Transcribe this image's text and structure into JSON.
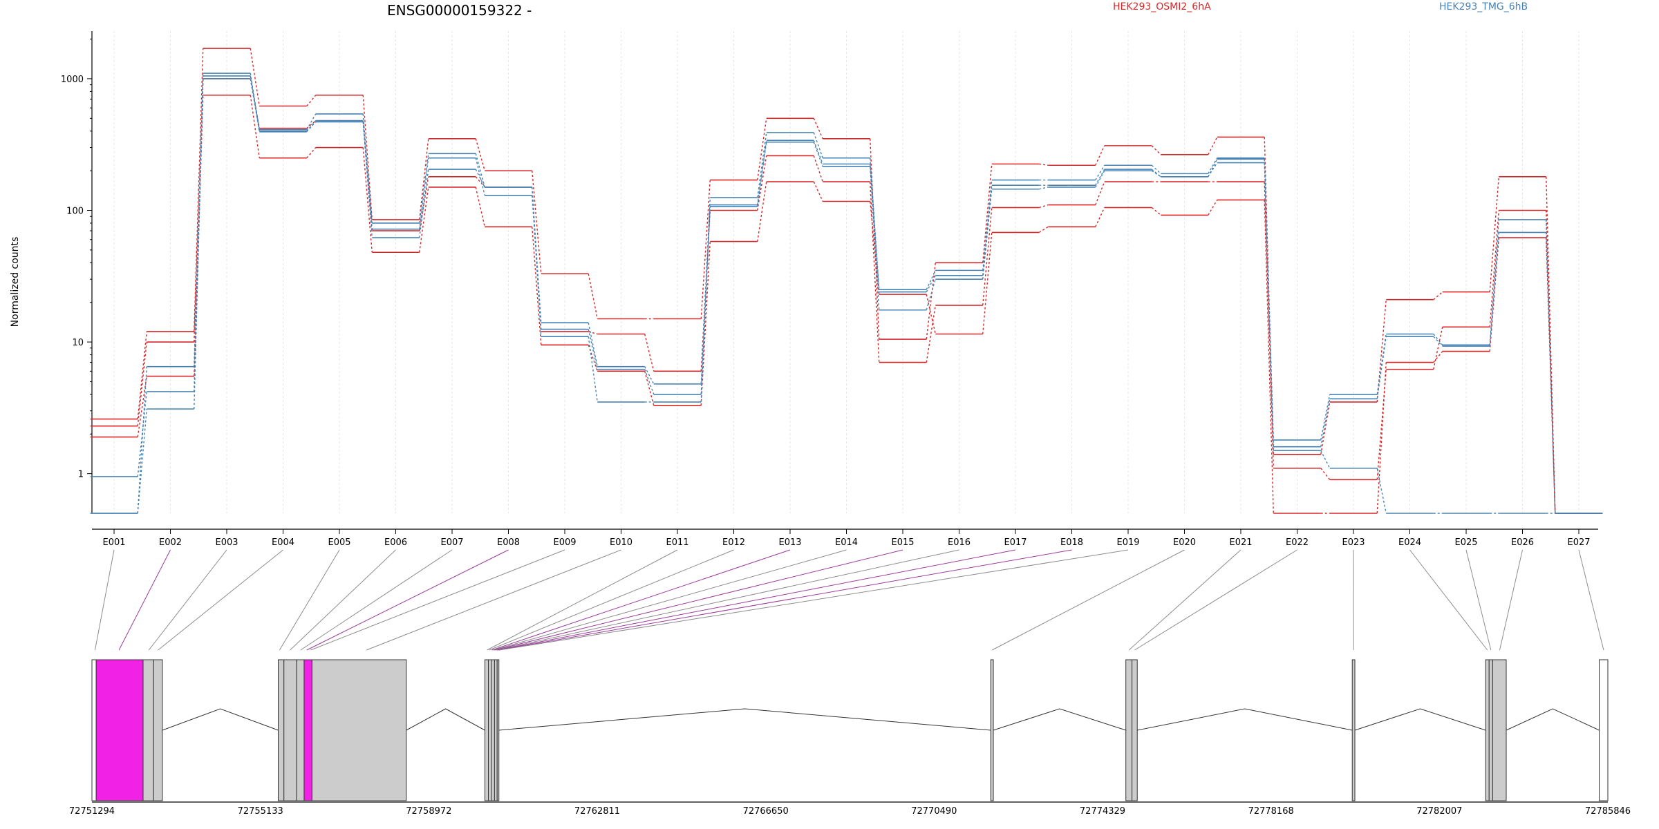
{
  "chart_data": {
    "type": "line",
    "title": "ENSG00000159322 -",
    "ylabel": "Normalized counts",
    "xlabel": "",
    "y_scale": "log",
    "ylim": [
      0.5,
      2300
    ],
    "y_ticks": [
      1,
      10,
      100,
      1000
    ],
    "y_tick_labels": [
      "1",
      "10",
      "100",
      "1000"
    ],
    "grid": "vertical-dotted",
    "legend_position": "top",
    "colors": {
      "HEK293_OSMI2_6hA": "#d62728",
      "HEK293_TMG_6hB": "#4682b4"
    },
    "categories": [
      "E001",
      "E002",
      "E003",
      "E004",
      "E005",
      "E006",
      "E007",
      "E008",
      "E009",
      "E010",
      "E011",
      "E012",
      "E013",
      "E014",
      "E015",
      "E016",
      "E017",
      "E018",
      "E019",
      "E020",
      "E021",
      "E022",
      "E023",
      "E024",
      "E025",
      "E026",
      "E027"
    ],
    "series": [
      {
        "name": "HEK293_OSMI2_6hA",
        "group": "HEK293_OSMI2_6hA",
        "values": [
          2.6,
          12,
          1700,
          620,
          750,
          85,
          350,
          200,
          33,
          15,
          15,
          170,
          500,
          350,
          10.5,
          40,
          225,
          220,
          310,
          265,
          360,
          1.4,
          3.5,
          21,
          24,
          180,
          0.5
        ]
      },
      {
        "name": "HEK293_OSMI2_6hA",
        "group": "HEK293_OSMI2_6hA",
        "values": [
          2.3,
          10,
          1000,
          420,
          480,
          70,
          180,
          150,
          12,
          11.5,
          6,
          100,
          260,
          165,
          7,
          19,
          105,
          110,
          165,
          165,
          165,
          1.1,
          0.9,
          6.2,
          13,
          100,
          0.5
        ]
      },
      {
        "name": "HEK293_OSMI2_6hA",
        "group": "HEK293_OSMI2_6hA",
        "values": [
          1.9,
          5.5,
          750,
          250,
          300,
          48,
          150,
          75,
          9.5,
          6,
          3.3,
          58,
          165,
          117,
          23,
          11.5,
          68,
          75,
          105,
          92,
          120,
          0.5,
          0.5,
          7,
          8.5,
          62,
          0.5
        ]
      },
      {
        "name": "HEK293_TMG_6hB",
        "group": "HEK293_TMG_6hB",
        "values": [
          0.5,
          6.5,
          1100,
          410,
          540,
          80,
          270,
          150,
          14,
          6.5,
          4.8,
          125,
          390,
          250,
          25,
          35,
          170,
          170,
          220,
          190,
          250,
          1.8,
          4,
          11.5,
          9.5,
          85,
          0.5
        ]
      },
      {
        "name": "HEK293_TMG_6hB",
        "group": "HEK293_TMG_6hB",
        "values": [
          0.95,
          4.2,
          1050,
          400,
          480,
          72,
          250,
          130,
          12.5,
          6.2,
          4,
          110,
          340,
          225,
          24,
          32,
          155,
          155,
          205,
          180,
          230,
          1.6,
          3.7,
          11,
          9.3,
          68,
          0.5
        ]
      },
      {
        "name": "HEK293_TMG_6hB",
        "group": "HEK293_TMG_6hB",
        "values": [
          0.5,
          3.1,
          1000,
          395,
          470,
          62,
          205,
          150,
          11,
          3.5,
          3.5,
          107,
          330,
          215,
          17.5,
          30,
          145,
          150,
          200,
          180,
          245,
          1.5,
          1.1,
          0.5,
          0.5,
          0.5,
          0.5
        ]
      }
    ],
    "gene_model": {
      "coordinate_labels": [
        "72751294",
        "72755133",
        "72758972",
        "72762811",
        "72766650",
        "72770490",
        "72774329",
        "72778168",
        "72782007",
        "72785846"
      ],
      "coord_start": 72751294,
      "coord_end": 72785846,
      "exons": [
        {
          "id": "E001",
          "start": 72751294,
          "end": 72751391,
          "fill": "#ffffff",
          "highlight": false
        },
        {
          "id": "E002",
          "start": 72751391,
          "end": 72752460,
          "fill": "#f122e6",
          "highlight": true
        },
        {
          "id": "E003",
          "start": 72752460,
          "end": 72752700,
          "fill": "#cccccc",
          "highlight": false
        },
        {
          "id": "E004",
          "start": 72752700,
          "end": 72752900,
          "fill": "#cccccc",
          "highlight": false
        },
        {
          "id": "E005",
          "start": 72755540,
          "end": 72755670,
          "fill": "#cccccc",
          "highlight": false
        },
        {
          "id": "E006",
          "start": 72755670,
          "end": 72755960,
          "fill": "#cccccc",
          "highlight": false
        },
        {
          "id": "E007",
          "start": 72755960,
          "end": 72756130,
          "fill": "#cccccc",
          "highlight": false
        },
        {
          "id": "E008",
          "start": 72756130,
          "end": 72756310,
          "fill": "#f122e6",
          "highlight": true
        },
        {
          "id": "E009",
          "start": 72756310,
          "end": 72758460,
          "fill": "#cccccc",
          "highlight": false
        },
        {
          "id": "E010",
          "start": 72760250,
          "end": 72760330,
          "fill": "#cccccc",
          "highlight": false
        },
        {
          "id": "E011",
          "start": 72760330,
          "end": 72760400,
          "fill": "#cccccc",
          "highlight": false
        },
        {
          "id": "E012",
          "start": 72760400,
          "end": 72760470,
          "fill": "#cccccc",
          "highlight": false
        },
        {
          "id": "E013",
          "start": 72760470,
          "end": 72760530,
          "fill": "#cccccc",
          "highlight": false
        },
        {
          "id": "E014",
          "start": 72760530,
          "end": 72760570,
          "fill": "#cccccc",
          "highlight": false
        },
        {
          "id": "E015",
          "start": 72771780,
          "end": 72771840,
          "fill": "#cccccc",
          "highlight": false
        },
        {
          "id": "E016",
          "start": 72774860,
          "end": 72775000,
          "fill": "#cccccc",
          "highlight": false
        },
        {
          "id": "E017",
          "start": 72775000,
          "end": 72775120,
          "fill": "#cccccc",
          "highlight": false
        },
        {
          "id": "E018",
          "start": 72780020,
          "end": 72780080,
          "fill": "#cccccc",
          "highlight": false
        },
        {
          "id": "E019",
          "start": 72783060,
          "end": 72783140,
          "fill": "#cccccc",
          "highlight": false
        },
        {
          "id": "E020",
          "start": 72783140,
          "end": 72783220,
          "fill": "#cccccc",
          "highlight": false
        },
        {
          "id": "E021",
          "start": 72783220,
          "end": 72783530,
          "fill": "#cccccc",
          "highlight": false
        },
        {
          "id": "E022",
          "start": 72785650,
          "end": 72785846,
          "fill": "#ffffff",
          "highlight": false
        }
      ],
      "exon_links": [
        {
          "exon": "E001",
          "coord": 72751364,
          "highlight": false
        },
        {
          "exon": "E002",
          "coord": 72751910,
          "highlight": true
        },
        {
          "exon": "E003",
          "coord": 72752590,
          "highlight": false
        },
        {
          "exon": "E004",
          "coord": 72752800,
          "highlight": false
        },
        {
          "exon": "E005",
          "coord": 72755570,
          "highlight": false
        },
        {
          "exon": "E006",
          "coord": 72755810,
          "highlight": false
        },
        {
          "exon": "E007",
          "coord": 72756050,
          "highlight": false
        },
        {
          "exon": "E008",
          "coord": 72756190,
          "highlight": true
        },
        {
          "exon": "E009",
          "coord": 72756280,
          "highlight": false
        },
        {
          "exon": "E010",
          "coord": 72757550,
          "highlight": false
        },
        {
          "exon": "E011",
          "coord": 72760300,
          "highlight": false
        },
        {
          "exon": "E012",
          "coord": 72760350,
          "highlight": false
        },
        {
          "exon": "E013",
          "coord": 72760410,
          "highlight": true
        },
        {
          "exon": "E014",
          "coord": 72760440,
          "highlight": false
        },
        {
          "exon": "E015",
          "coord": 72760470,
          "highlight": true
        },
        {
          "exon": "E016",
          "coord": 72760500,
          "highlight": false
        },
        {
          "exon": "E017",
          "coord": 72760530,
          "highlight": true
        },
        {
          "exon": "E018",
          "coord": 72760560,
          "highlight": true
        },
        {
          "exon": "E019",
          "coord": 72760580,
          "highlight": false
        },
        {
          "exon": "E020",
          "coord": 72771810,
          "highlight": false
        },
        {
          "exon": "E021",
          "coord": 72774930,
          "highlight": false
        },
        {
          "exon": "E022",
          "coord": 72775060,
          "highlight": false
        },
        {
          "exon": "E023",
          "coord": 72780050,
          "highlight": false
        },
        {
          "exon": "E024",
          "coord": 72783100,
          "highlight": false
        },
        {
          "exon": "E025",
          "coord": 72783180,
          "highlight": false
        },
        {
          "exon": "E026",
          "coord": 72783380,
          "highlight": false
        },
        {
          "exon": "E027",
          "coord": 72785750,
          "highlight": false
        }
      ]
    }
  }
}
